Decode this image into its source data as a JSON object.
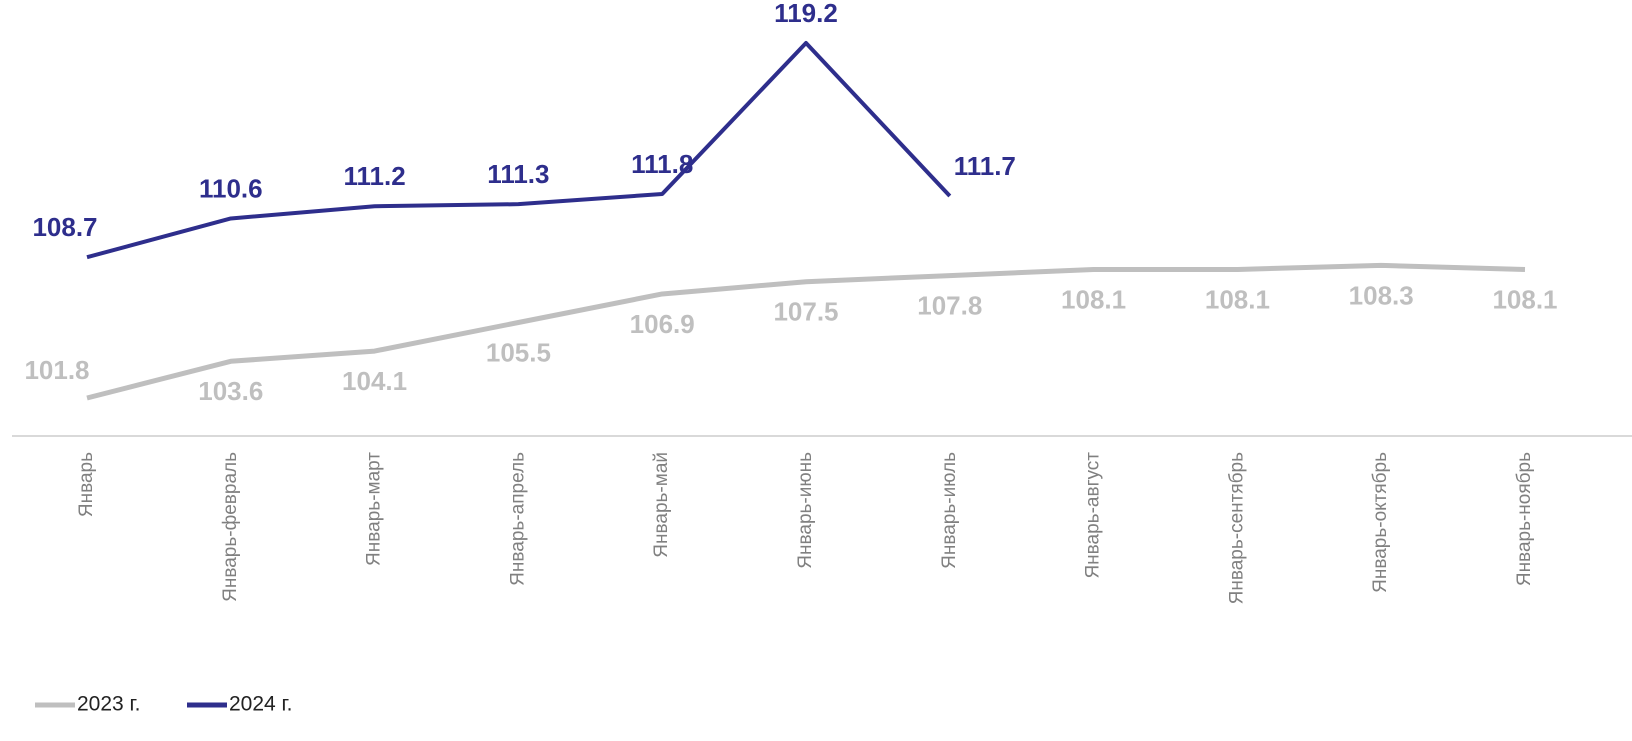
{
  "chart_data": {
    "type": "line",
    "categories": [
      "Январь",
      "Январь-февраль",
      "Январь-март",
      "Январь-апрель",
      "Январь-май",
      "Январь-июнь",
      "Январь-июль",
      "Январь-август",
      "Январь-сентябрь",
      "Январь-октябрь",
      "Январь-ноябрь"
    ],
    "series": [
      {
        "name": "2023 г.",
        "color": "#bfbfbf",
        "values": [
          101.8,
          103.6,
          104.1,
          105.5,
          106.9,
          107.5,
          107.8,
          108.1,
          108.1,
          108.3,
          108.1
        ]
      },
      {
        "name": "2024 г.",
        "color": "#2e2e8c",
        "values": [
          108.7,
          110.6,
          111.2,
          111.3,
          111.8,
          119.2,
          111.7,
          null,
          null,
          null,
          null
        ]
      }
    ],
    "legend": "bottom-left"
  }
}
